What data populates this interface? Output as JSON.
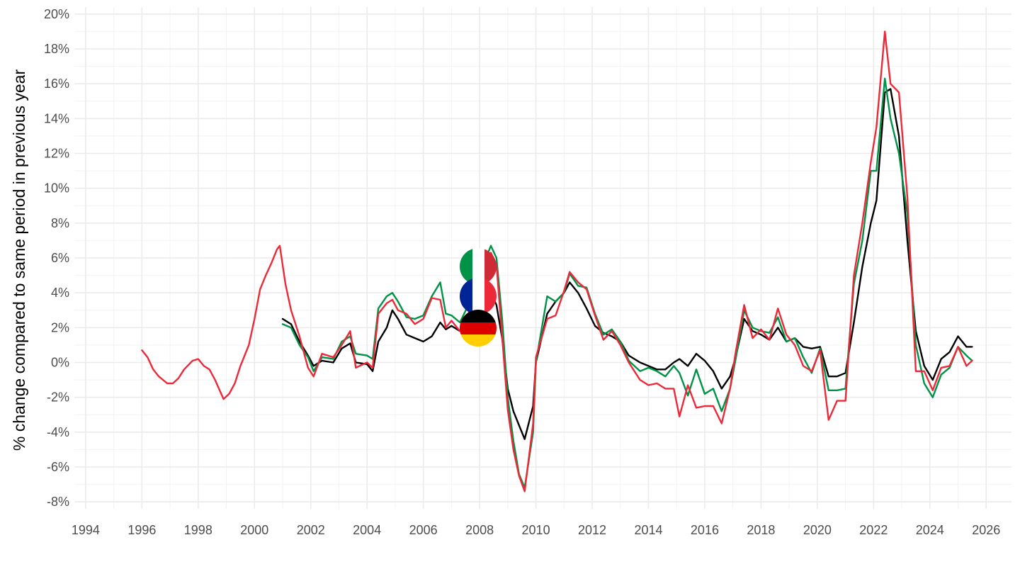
{
  "chart_data": {
    "type": "line",
    "title": "",
    "xlabel": "",
    "ylabel": "% change compared to same period in previous year",
    "xlim": [
      1993.6,
      2026.9
    ],
    "ylim": [
      -8.4,
      20.4
    ],
    "x_ticks": [
      "1994",
      "1996",
      "1998",
      "2000",
      "2002",
      "2004",
      "2006",
      "2008",
      "2010",
      "2012",
      "2014",
      "2016",
      "2018",
      "2020",
      "2022",
      "2024",
      "2026"
    ],
    "y_ticks": [
      "-8%",
      "-6%",
      "-4%",
      "-2%",
      "0%",
      "2%",
      "4%",
      "6%",
      "8%",
      "10%",
      "12%",
      "14%",
      "16%",
      "18%",
      "20%"
    ],
    "grid": true,
    "legend": "flag icons near series labels (Italy, France, Germany)",
    "colors": {
      "Germany": "#000000",
      "Italy": "#009246",
      "France": "#ED2939"
    },
    "series": [
      {
        "name": "Germany",
        "color": "#000000",
        "points": [
          [
            2001.0,
            2.5
          ],
          [
            2001.3,
            2.2
          ],
          [
            2001.6,
            1.2
          ],
          [
            2001.9,
            0.4
          ],
          [
            2002.1,
            -0.2
          ],
          [
            2002.4,
            0.1
          ],
          [
            2002.8,
            0.0
          ],
          [
            2003.1,
            0.8
          ],
          [
            2003.4,
            1.1
          ],
          [
            2003.6,
            0.0
          ],
          [
            2004.0,
            -0.1
          ],
          [
            2004.2,
            -0.5
          ],
          [
            2004.4,
            1.2
          ],
          [
            2004.7,
            2.0
          ],
          [
            2004.9,
            3.0
          ],
          [
            2005.1,
            2.5
          ],
          [
            2005.4,
            1.6
          ],
          [
            2005.7,
            1.4
          ],
          [
            2006.0,
            1.2
          ],
          [
            2006.3,
            1.5
          ],
          [
            2006.6,
            2.3
          ],
          [
            2006.8,
            1.9
          ],
          [
            2007.0,
            2.1
          ],
          [
            2007.3,
            1.8
          ],
          [
            2007.6,
            2.4
          ],
          [
            2007.9,
            3.4
          ],
          [
            2008.1,
            3.7
          ],
          [
            2008.4,
            4.0
          ],
          [
            2008.6,
            3.3
          ],
          [
            2008.8,
            1.4
          ],
          [
            2009.0,
            -1.5
          ],
          [
            2009.2,
            -2.8
          ],
          [
            2009.4,
            -3.6
          ],
          [
            2009.6,
            -4.4
          ],
          [
            2009.9,
            -2.5
          ],
          [
            2010.0,
            0.0
          ],
          [
            2010.4,
            2.8
          ],
          [
            2010.7,
            3.5
          ],
          [
            2011.0,
            4.0
          ],
          [
            2011.2,
            4.6
          ],
          [
            2011.5,
            4.0
          ],
          [
            2011.8,
            3.1
          ],
          [
            2012.1,
            2.1
          ],
          [
            2012.4,
            1.7
          ],
          [
            2012.7,
            1.5
          ],
          [
            2013.0,
            1.2
          ],
          [
            2013.3,
            0.4
          ],
          [
            2013.7,
            0.0
          ],
          [
            2014.0,
            -0.2
          ],
          [
            2014.3,
            -0.4
          ],
          [
            2014.6,
            -0.4
          ],
          [
            2014.9,
            0.0
          ],
          [
            2015.1,
            0.2
          ],
          [
            2015.4,
            -0.2
          ],
          [
            2015.7,
            0.5
          ],
          [
            2016.0,
            0.1
          ],
          [
            2016.3,
            -0.5
          ],
          [
            2016.6,
            -1.5
          ],
          [
            2016.9,
            -0.8
          ],
          [
            2017.1,
            0.3
          ],
          [
            2017.4,
            2.5
          ],
          [
            2017.7,
            1.8
          ],
          [
            2018.0,
            1.6
          ],
          [
            2018.3,
            1.3
          ],
          [
            2018.6,
            2.0
          ],
          [
            2018.9,
            1.2
          ],
          [
            2019.2,
            1.4
          ],
          [
            2019.5,
            0.9
          ],
          [
            2019.8,
            0.8
          ],
          [
            2020.1,
            0.9
          ],
          [
            2020.4,
            -0.8
          ],
          [
            2020.7,
            -0.8
          ],
          [
            2021.0,
            -0.6
          ],
          [
            2021.3,
            2.3
          ],
          [
            2021.6,
            5.5
          ],
          [
            2021.9,
            8.0
          ],
          [
            2022.1,
            9.3
          ],
          [
            2022.4,
            15.5
          ],
          [
            2022.6,
            15.7
          ],
          [
            2022.9,
            13.0
          ],
          [
            2023.2,
            7.0
          ],
          [
            2023.5,
            1.8
          ],
          [
            2023.8,
            -0.2
          ],
          [
            2024.1,
            -1.0
          ],
          [
            2024.4,
            0.2
          ],
          [
            2024.7,
            0.6
          ],
          [
            2025.0,
            1.5
          ],
          [
            2025.3,
            0.9
          ],
          [
            2025.5,
            0.9
          ]
        ]
      },
      {
        "name": "Italy",
        "color": "#009246",
        "points": [
          [
            2001.0,
            2.2
          ],
          [
            2001.3,
            2.0
          ],
          [
            2001.6,
            1.0
          ],
          [
            2001.9,
            0.3
          ],
          [
            2002.1,
            -0.5
          ],
          [
            2002.4,
            0.3
          ],
          [
            2002.8,
            0.2
          ],
          [
            2003.1,
            1.2
          ],
          [
            2003.4,
            1.5
          ],
          [
            2003.6,
            0.5
          ],
          [
            2004.0,
            0.4
          ],
          [
            2004.2,
            0.2
          ],
          [
            2004.4,
            3.1
          ],
          [
            2004.7,
            3.8
          ],
          [
            2004.9,
            4.0
          ],
          [
            2005.1,
            3.5
          ],
          [
            2005.4,
            2.6
          ],
          [
            2005.7,
            2.5
          ],
          [
            2006.0,
            2.7
          ],
          [
            2006.3,
            3.8
          ],
          [
            2006.6,
            4.6
          ],
          [
            2006.8,
            2.8
          ],
          [
            2007.0,
            2.7
          ],
          [
            2007.3,
            2.3
          ],
          [
            2007.6,
            3.3
          ],
          [
            2007.9,
            4.6
          ],
          [
            2008.1,
            5.5
          ],
          [
            2008.4,
            6.7
          ],
          [
            2008.6,
            6.0
          ],
          [
            2008.8,
            2.5
          ],
          [
            2009.0,
            -2.0
          ],
          [
            2009.2,
            -4.5
          ],
          [
            2009.4,
            -6.4
          ],
          [
            2009.6,
            -7.2
          ],
          [
            2009.9,
            -4.0
          ],
          [
            2010.0,
            0.0
          ],
          [
            2010.4,
            3.8
          ],
          [
            2010.7,
            3.5
          ],
          [
            2011.0,
            4.0
          ],
          [
            2011.2,
            5.1
          ],
          [
            2011.5,
            4.4
          ],
          [
            2011.8,
            4.3
          ],
          [
            2012.1,
            2.8
          ],
          [
            2012.4,
            1.6
          ],
          [
            2012.7,
            1.9
          ],
          [
            2013.0,
            1.2
          ],
          [
            2013.3,
            0.1
          ],
          [
            2013.7,
            -0.5
          ],
          [
            2014.0,
            -0.3
          ],
          [
            2014.3,
            -0.5
          ],
          [
            2014.6,
            -0.8
          ],
          [
            2014.9,
            -0.2
          ],
          [
            2015.1,
            -0.6
          ],
          [
            2015.4,
            -1.9
          ],
          [
            2015.7,
            -0.4
          ],
          [
            2016.0,
            -1.8
          ],
          [
            2016.3,
            -1.5
          ],
          [
            2016.6,
            -2.8
          ],
          [
            2016.9,
            -1.5
          ],
          [
            2017.1,
            0.2
          ],
          [
            2017.4,
            3.0
          ],
          [
            2017.7,
            2.0
          ],
          [
            2018.0,
            1.8
          ],
          [
            2018.3,
            1.7
          ],
          [
            2018.6,
            2.6
          ],
          [
            2018.9,
            1.2
          ],
          [
            2019.2,
            1.4
          ],
          [
            2019.5,
            0.3
          ],
          [
            2019.8,
            -0.6
          ],
          [
            2020.1,
            0.8
          ],
          [
            2020.4,
            -1.6
          ],
          [
            2020.7,
            -1.6
          ],
          [
            2021.0,
            -1.5
          ],
          [
            2021.3,
            4.5
          ],
          [
            2021.6,
            7.0
          ],
          [
            2021.9,
            11.0
          ],
          [
            2022.1,
            11.0
          ],
          [
            2022.4,
            16.3
          ],
          [
            2022.6,
            14.0
          ],
          [
            2022.9,
            12.0
          ],
          [
            2023.2,
            8.5
          ],
          [
            2023.5,
            1.0
          ],
          [
            2023.8,
            -1.2
          ],
          [
            2024.1,
            -2.0
          ],
          [
            2024.4,
            -0.7
          ],
          [
            2024.7,
            -0.3
          ],
          [
            2025.0,
            0.9
          ],
          [
            2025.3,
            0.4
          ],
          [
            2025.5,
            0.1
          ]
        ]
      },
      {
        "name": "France",
        "color": "#ED2939",
        "points": [
          [
            1996.0,
            0.7
          ],
          [
            1996.2,
            0.3
          ],
          [
            1996.4,
            -0.4
          ],
          [
            1996.6,
            -0.8
          ],
          [
            1996.9,
            -1.2
          ],
          [
            1997.1,
            -1.2
          ],
          [
            1997.3,
            -0.9
          ],
          [
            1997.5,
            -0.4
          ],
          [
            1997.8,
            0.1
          ],
          [
            1998.0,
            0.2
          ],
          [
            1998.2,
            -0.2
          ],
          [
            1998.4,
            -0.4
          ],
          [
            1998.6,
            -1.0
          ],
          [
            1998.9,
            -2.1
          ],
          [
            1999.1,
            -1.8
          ],
          [
            1999.3,
            -1.2
          ],
          [
            1999.5,
            -0.2
          ],
          [
            1999.8,
            1.0
          ],
          [
            2000.0,
            2.5
          ],
          [
            2000.2,
            4.2
          ],
          [
            2000.4,
            5.0
          ],
          [
            2000.6,
            5.7
          ],
          [
            2000.8,
            6.5
          ],
          [
            2000.9,
            6.7
          ],
          [
            2001.1,
            4.5
          ],
          [
            2001.3,
            3.0
          ],
          [
            2001.6,
            1.5
          ],
          [
            2001.9,
            -0.3
          ],
          [
            2002.1,
            -0.8
          ],
          [
            2002.4,
            0.5
          ],
          [
            2002.8,
            0.3
          ],
          [
            2003.1,
            1.0
          ],
          [
            2003.4,
            1.8
          ],
          [
            2003.6,
            -0.3
          ],
          [
            2004.0,
            0.0
          ],
          [
            2004.2,
            -0.3
          ],
          [
            2004.4,
            2.8
          ],
          [
            2004.7,
            3.4
          ],
          [
            2004.9,
            3.6
          ],
          [
            2005.1,
            3.0
          ],
          [
            2005.4,
            2.8
          ],
          [
            2005.7,
            2.2
          ],
          [
            2006.0,
            2.5
          ],
          [
            2006.3,
            3.7
          ],
          [
            2006.6,
            3.6
          ],
          [
            2006.8,
            2.0
          ],
          [
            2007.0,
            2.4
          ],
          [
            2007.3,
            1.8
          ],
          [
            2007.6,
            2.8
          ],
          [
            2007.9,
            4.2
          ],
          [
            2008.1,
            5.0
          ],
          [
            2008.4,
            6.3
          ],
          [
            2008.6,
            5.6
          ],
          [
            2008.8,
            1.5
          ],
          [
            2009.0,
            -2.7
          ],
          [
            2009.2,
            -5.0
          ],
          [
            2009.4,
            -6.5
          ],
          [
            2009.6,
            -7.4
          ],
          [
            2009.9,
            -3.5
          ],
          [
            2010.0,
            0.3
          ],
          [
            2010.4,
            2.5
          ],
          [
            2010.7,
            2.7
          ],
          [
            2011.0,
            4.1
          ],
          [
            2011.2,
            5.2
          ],
          [
            2011.5,
            4.6
          ],
          [
            2011.8,
            4.2
          ],
          [
            2012.1,
            2.7
          ],
          [
            2012.4,
            1.3
          ],
          [
            2012.7,
            1.8
          ],
          [
            2013.0,
            1.0
          ],
          [
            2013.3,
            0.0
          ],
          [
            2013.7,
            -1.0
          ],
          [
            2014.0,
            -1.3
          ],
          [
            2014.3,
            -1.2
          ],
          [
            2014.6,
            -1.5
          ],
          [
            2014.9,
            -1.5
          ],
          [
            2015.1,
            -3.1
          ],
          [
            2015.4,
            -1.3
          ],
          [
            2015.7,
            -2.6
          ],
          [
            2016.0,
            -2.5
          ],
          [
            2016.3,
            -2.5
          ],
          [
            2016.6,
            -3.5
          ],
          [
            2016.9,
            -1.5
          ],
          [
            2017.1,
            0.6
          ],
          [
            2017.4,
            3.3
          ],
          [
            2017.7,
            1.4
          ],
          [
            2018.0,
            1.9
          ],
          [
            2018.3,
            1.3
          ],
          [
            2018.6,
            3.1
          ],
          [
            2018.9,
            1.6
          ],
          [
            2019.2,
            1.0
          ],
          [
            2019.5,
            -0.2
          ],
          [
            2019.8,
            -0.5
          ],
          [
            2020.1,
            0.7
          ],
          [
            2020.4,
            -3.3
          ],
          [
            2020.7,
            -2.2
          ],
          [
            2021.0,
            -2.2
          ],
          [
            2021.3,
            5.0
          ],
          [
            2021.6,
            8.0
          ],
          [
            2021.9,
            11.5
          ],
          [
            2022.1,
            13.5
          ],
          [
            2022.4,
            19.0
          ],
          [
            2022.6,
            16.0
          ],
          [
            2022.9,
            15.5
          ],
          [
            2023.2,
            9.5
          ],
          [
            2023.5,
            -0.5
          ],
          [
            2023.8,
            -0.5
          ],
          [
            2024.1,
            -1.6
          ],
          [
            2024.4,
            -0.3
          ],
          [
            2024.7,
            -0.2
          ],
          [
            2025.0,
            0.9
          ],
          [
            2025.3,
            -0.2
          ],
          [
            2025.5,
            0.1
          ]
        ]
      }
    ]
  },
  "flags": [
    {
      "name": "italy-flag-icon",
      "country": "Italy"
    },
    {
      "name": "france-flag-icon",
      "country": "France"
    },
    {
      "name": "germany-flag-icon",
      "country": "Germany"
    }
  ]
}
